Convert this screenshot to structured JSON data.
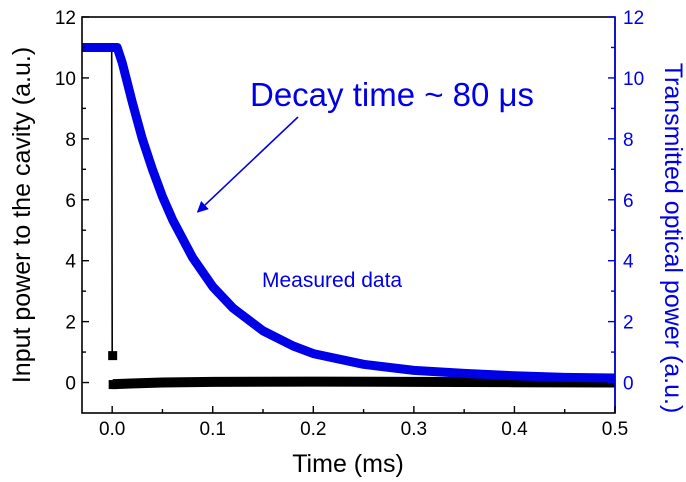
{
  "chart_data": {
    "type": "line",
    "title": "",
    "xlabel": "Time (ms)",
    "ylabel_left": "Input power to the cavity (a.u.)",
    "ylabel_right": "Transmitted optical power (a.u.)",
    "xlim": [
      -0.03,
      0.5
    ],
    "ylim_left": [
      -1,
      12
    ],
    "ylim_right": [
      -1,
      12
    ],
    "x_ticks": [
      0.0,
      0.1,
      0.2,
      0.3,
      0.4,
      0.5
    ],
    "x_tick_labels": [
      "0.0",
      "0.1",
      "0.2",
      "0.3",
      "0.4",
      "0.5"
    ],
    "y_ticks_left": [
      0,
      2,
      4,
      6,
      8,
      10,
      12
    ],
    "y_tick_labels_left": [
      "0",
      "2",
      "4",
      "6",
      "8",
      "10",
      "12"
    ],
    "y_ticks_right": [
      0,
      2,
      4,
      6,
      8,
      10,
      12
    ],
    "y_tick_labels_right": [
      "0",
      "2",
      "4",
      "6",
      "8",
      "10",
      "12"
    ],
    "grid": false,
    "colors": {
      "input": "#000000",
      "transmitted": "#0000e6",
      "right_axis": "#0000e6"
    },
    "series": [
      {
        "axis": "left",
        "color": "#000000",
        "style": "line-with-square-markers",
        "x": [
          -0.03,
          -0.02,
          -0.01,
          -0.002,
          -0.0005,
          0.0,
          0.0005,
          0.002,
          0.05,
          0.1,
          0.2,
          0.3,
          0.4,
          0.5
        ],
        "y": [
          11.0,
          11.0,
          11.0,
          11.0,
          11.0,
          0.9,
          -0.05,
          -0.05,
          0.0,
          0.02,
          0.03,
          0.02,
          0.01,
          0.0
        ]
      },
      {
        "axis": "right",
        "color": "#0000e6",
        "style": "thick-line",
        "x": [
          -0.03,
          -0.01,
          0.0,
          0.005,
          0.01,
          0.02,
          0.03,
          0.04,
          0.05,
          0.06,
          0.08,
          0.1,
          0.12,
          0.15,
          0.18,
          0.2,
          0.25,
          0.3,
          0.35,
          0.4,
          0.45,
          0.5
        ],
        "y": [
          11.0,
          11.0,
          11.0,
          11.0,
          10.5,
          9.2,
          8.0,
          7.0,
          6.1,
          5.35,
          4.1,
          3.15,
          2.45,
          1.7,
          1.2,
          0.95,
          0.6,
          0.4,
          0.3,
          0.22,
          0.17,
          0.15
        ]
      }
    ],
    "annotations": [
      {
        "text": "Decay time ~ 80 μs",
        "color": "#0000e6",
        "type": "text-with-arrow",
        "arrow_to": [
          0.085,
          5.6
        ]
      },
      {
        "text": "Measured data",
        "color": "#0000e6",
        "type": "text"
      }
    ]
  }
}
